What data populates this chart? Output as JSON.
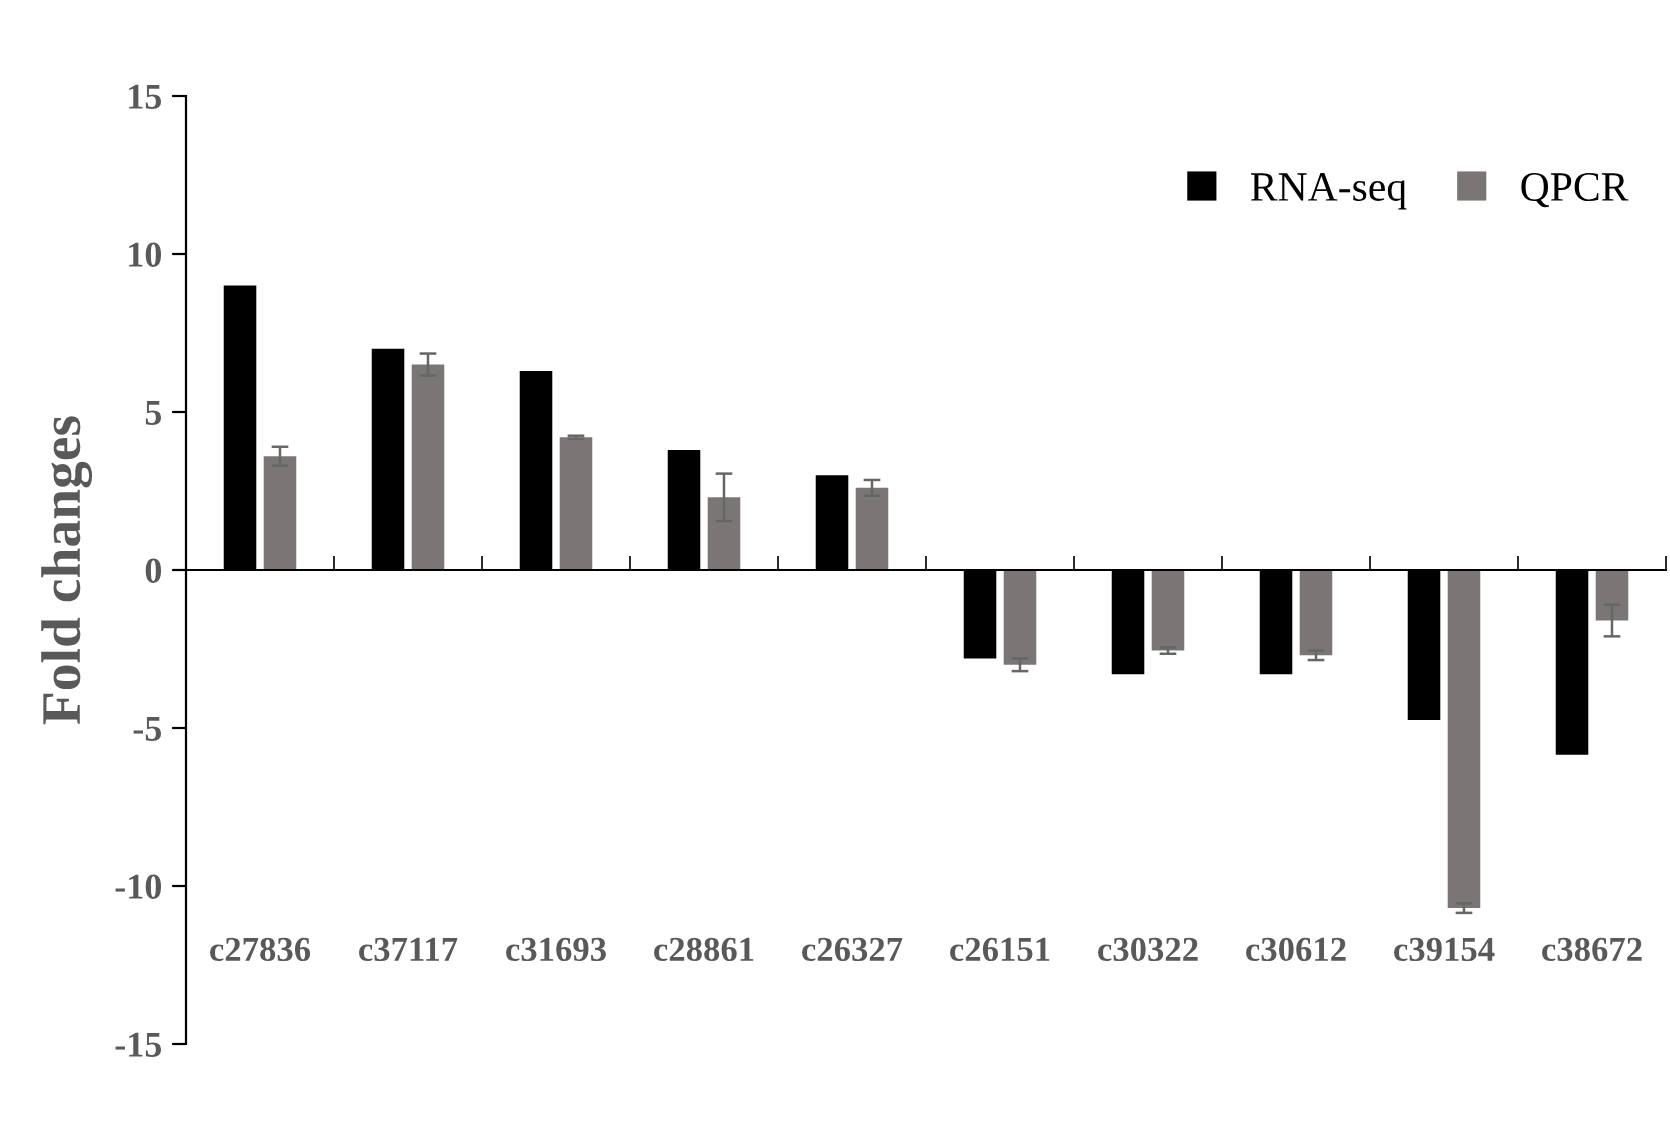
{
  "chart_data": {
    "type": "bar",
    "ylabel": "Fold changes",
    "categories": [
      "c27836",
      "c37117",
      "c31693",
      "c28861",
      "c26327",
      "c26151",
      "c30322",
      "c30612",
      "c39154",
      "c38672"
    ],
    "series": [
      {
        "name": "RNA-seq",
        "color": "#000000",
        "values": [
          9.0,
          7.0,
          6.3,
          3.8,
          3.0,
          -2.8,
          -3.3,
          -3.3,
          -4.75,
          -5.85
        ]
      },
      {
        "name": "QPCR",
        "color": "#7a7676",
        "values": [
          3.6,
          6.5,
          4.2,
          2.3,
          2.6,
          -3.0,
          -2.55,
          -2.7,
          -10.7,
          -1.6
        ],
        "errors": [
          0.3,
          0.35,
          0.05,
          0.75,
          0.25,
          0.2,
          0.1,
          0.15,
          0.15,
          0.5
        ]
      }
    ],
    "ylim": [
      -15,
      15
    ],
    "yticks": [
      -15,
      -10,
      -5,
      0,
      5,
      10,
      15
    ],
    "legend": "top right"
  }
}
